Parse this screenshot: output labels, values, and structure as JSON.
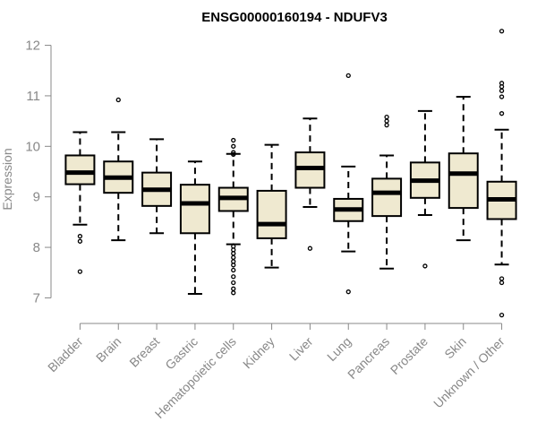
{
  "colors": {
    "box_fill": "#efe9d0",
    "stroke": "#000000",
    "axis_text": "#888888"
  },
  "chart_data": {
    "type": "boxplot",
    "title": "ENSG00000160194 - NDUFV3",
    "ylabel": "Expression",
    "xlabel": "",
    "ylim": [
      6.6,
      12.4
    ],
    "yticks": [
      7,
      8,
      9,
      10,
      11,
      12
    ],
    "categories": [
      "Bladder",
      "Brain",
      "Breast",
      "Gastric",
      "Hematopoietic cells",
      "Kidney",
      "Liver",
      "Lung",
      "Pancreas",
      "Prostate",
      "Skin",
      "Unknown / Other"
    ],
    "boxes": [
      {
        "name": "Bladder",
        "whisker_low": 8.45,
        "q1": 9.25,
        "median": 9.48,
        "q3": 9.82,
        "whisker_high": 10.28,
        "outliers": [
          8.22,
          8.12,
          7.52
        ]
      },
      {
        "name": "Brain",
        "whisker_low": 8.14,
        "q1": 9.08,
        "median": 9.38,
        "q3": 9.7,
        "whisker_high": 10.28,
        "outliers": [
          10.92
        ]
      },
      {
        "name": "Breast",
        "whisker_low": 8.28,
        "q1": 8.82,
        "median": 9.14,
        "q3": 9.48,
        "whisker_high": 10.14,
        "outliers": []
      },
      {
        "name": "Gastric",
        "whisker_low": 7.08,
        "q1": 8.28,
        "median": 8.87,
        "q3": 9.24,
        "whisker_high": 9.7,
        "outliers": []
      },
      {
        "name": "Hematopoietic cells",
        "whisker_low": 8.06,
        "q1": 8.72,
        "median": 8.98,
        "q3": 9.18,
        "whisker_high": 9.85,
        "outliers": [
          10.12,
          10.0,
          9.88,
          9.84,
          8.02,
          7.95,
          7.88,
          7.8,
          7.72,
          7.65,
          7.55,
          7.42,
          7.3,
          7.18,
          7.1
        ]
      },
      {
        "name": "Kidney",
        "whisker_low": 7.6,
        "q1": 8.18,
        "median": 8.46,
        "q3": 9.12,
        "whisker_high": 10.03,
        "outliers": []
      },
      {
        "name": "Liver",
        "whisker_low": 8.8,
        "q1": 9.18,
        "median": 9.57,
        "q3": 9.88,
        "whisker_high": 10.55,
        "outliers": [
          7.98
        ]
      },
      {
        "name": "Lung",
        "whisker_low": 7.92,
        "q1": 8.52,
        "median": 8.75,
        "q3": 8.96,
        "whisker_high": 9.6,
        "outliers": [
          11.4,
          7.12
        ]
      },
      {
        "name": "Pancreas",
        "whisker_low": 7.58,
        "q1": 8.62,
        "median": 9.08,
        "q3": 9.36,
        "whisker_high": 9.82,
        "outliers": [
          10.58,
          10.5,
          10.42
        ]
      },
      {
        "name": "Prostate",
        "whisker_low": 8.64,
        "q1": 8.98,
        "median": 9.32,
        "q3": 9.68,
        "whisker_high": 10.7,
        "outliers": [
          7.63
        ]
      },
      {
        "name": "Skin",
        "whisker_low": 8.14,
        "q1": 8.78,
        "median": 9.46,
        "q3": 9.86,
        "whisker_high": 10.98,
        "outliers": []
      },
      {
        "name": "Unknown / Other",
        "whisker_low": 7.66,
        "q1": 8.56,
        "median": 8.95,
        "q3": 9.3,
        "whisker_high": 10.33,
        "outliers": [
          12.28,
          11.25,
          11.18,
          11.1,
          10.98,
          10.65,
          7.38,
          7.3,
          6.66
        ]
      }
    ]
  }
}
